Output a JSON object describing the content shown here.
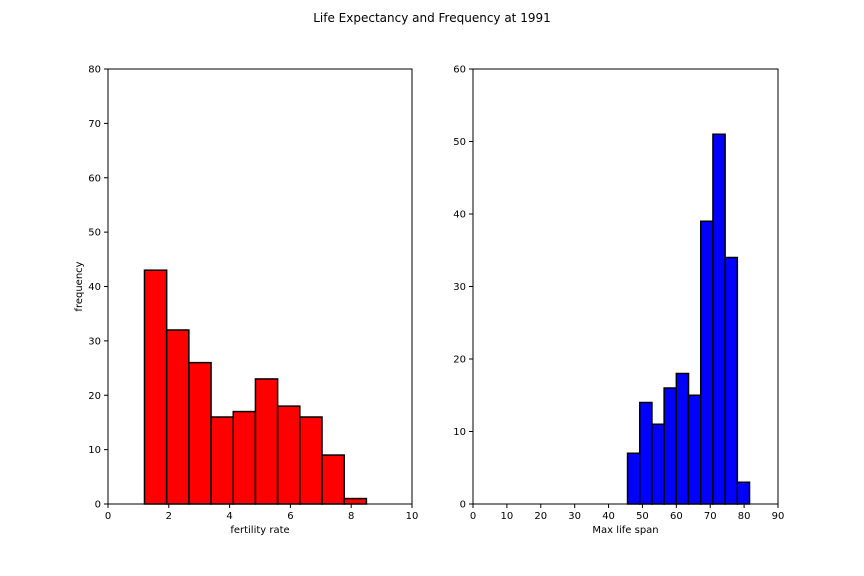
{
  "figure": {
    "title": "Life Expectancy and Frequency at 1991"
  },
  "chart_data": [
    {
      "type": "bar",
      "subtype": "histogram",
      "title": "",
      "xlabel": "fertility rate",
      "ylabel": "frequency",
      "xlim": [
        0,
        10
      ],
      "ylim": [
        0,
        80
      ],
      "xticks": [
        0,
        2,
        4,
        6,
        8,
        10
      ],
      "yticks": [
        0,
        10,
        20,
        30,
        40,
        50,
        60,
        70,
        80
      ],
      "bar_color": "#ff0000",
      "edge_color": "#000000",
      "grid": false,
      "bins": [
        {
          "x0": 1.2,
          "x1": 1.93,
          "value": 43
        },
        {
          "x0": 1.93,
          "x1": 2.66,
          "value": 32
        },
        {
          "x0": 2.66,
          "x1": 3.39,
          "value": 26
        },
        {
          "x0": 3.39,
          "x1": 4.12,
          "value": 16
        },
        {
          "x0": 4.12,
          "x1": 4.85,
          "value": 17
        },
        {
          "x0": 4.85,
          "x1": 5.58,
          "value": 23
        },
        {
          "x0": 5.58,
          "x1": 6.31,
          "value": 18
        },
        {
          "x0": 6.31,
          "x1": 7.04,
          "value": 16
        },
        {
          "x0": 7.04,
          "x1": 7.77,
          "value": 9
        },
        {
          "x0": 7.77,
          "x1": 8.5,
          "value": 1
        }
      ]
    },
    {
      "type": "bar",
      "subtype": "histogram",
      "title": "",
      "xlabel": "Max life span",
      "ylabel": "",
      "xlim": [
        0,
        90
      ],
      "ylim": [
        0,
        60
      ],
      "xticks": [
        0,
        10,
        20,
        30,
        40,
        50,
        60,
        70,
        80,
        90
      ],
      "yticks": [
        0,
        10,
        20,
        30,
        40,
        50,
        60
      ],
      "bar_color": "#0000ff",
      "edge_color": "#000000",
      "grid": false,
      "bins": [
        {
          "x0": 45.6,
          "x1": 49.2,
          "value": 7
        },
        {
          "x0": 49.2,
          "x1": 52.8,
          "value": 14
        },
        {
          "x0": 52.8,
          "x1": 56.4,
          "value": 11
        },
        {
          "x0": 56.4,
          "x1": 60.0,
          "value": 16
        },
        {
          "x0": 60.0,
          "x1": 63.6,
          "value": 18
        },
        {
          "x0": 63.6,
          "x1": 67.2,
          "value": 15
        },
        {
          "x0": 67.2,
          "x1": 70.8,
          "value": 39
        },
        {
          "x0": 70.8,
          "x1": 74.4,
          "value": 51
        },
        {
          "x0": 74.4,
          "x1": 78.0,
          "value": 34
        },
        {
          "x0": 78.0,
          "x1": 81.6,
          "value": 3
        }
      ]
    }
  ]
}
